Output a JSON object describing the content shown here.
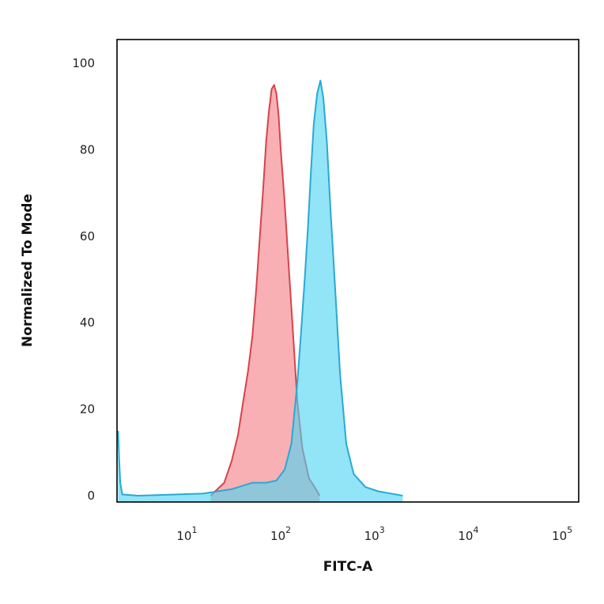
{
  "chart_data": {
    "type": "area",
    "title": "",
    "xlabel": "FITC-A",
    "ylabel": "Normalized To Mode",
    "x_scale": "log",
    "xlim": [
      1.8,
      150000
    ],
    "ylim": [
      0,
      100
    ],
    "y_ticks": [
      "0",
      "20",
      "40",
      "60",
      "80",
      "100"
    ],
    "x_ticks": [
      {
        "base": "10",
        "exp": "1",
        "value": 10
      },
      {
        "base": "10",
        "exp": "2",
        "value": 100
      },
      {
        "base": "10",
        "exp": "3",
        "value": 1000
      },
      {
        "base": "10",
        "exp": "4",
        "value": 10000
      },
      {
        "base": "10",
        "exp": "5",
        "value": 100000
      }
    ],
    "grid": false,
    "legend": "none",
    "series": [
      {
        "color": "#f47f86",
        "stroke": "#d9424b",
        "points": [
          [
            18,
            0
          ],
          [
            20,
            1
          ],
          [
            25,
            3
          ],
          [
            30,
            8
          ],
          [
            35,
            14
          ],
          [
            40,
            22
          ],
          [
            45,
            29
          ],
          [
            50,
            37
          ],
          [
            55,
            48
          ],
          [
            60,
            60
          ],
          [
            65,
            71
          ],
          [
            70,
            82
          ],
          [
            75,
            89
          ],
          [
            80,
            94
          ],
          [
            85,
            95
          ],
          [
            90,
            93
          ],
          [
            95,
            88
          ],
          [
            100,
            80
          ],
          [
            110,
            68
          ],
          [
            120,
            55
          ],
          [
            135,
            38
          ],
          [
            150,
            22
          ],
          [
            170,
            11
          ],
          [
            200,
            4
          ],
          [
            230,
            2
          ],
          [
            260,
            0
          ]
        ]
      },
      {
        "color": "#4fd4f2",
        "stroke": "#29a9d4",
        "points": [
          [
            1.85,
            15
          ],
          [
            1.9,
            8
          ],
          [
            1.95,
            3
          ],
          [
            2.05,
            0.3
          ],
          [
            3,
            0
          ],
          [
            15,
            0.5
          ],
          [
            30,
            1.5
          ],
          [
            50,
            3
          ],
          [
            70,
            3
          ],
          [
            90,
            3.5
          ],
          [
            110,
            6
          ],
          [
            130,
            12
          ],
          [
            150,
            26
          ],
          [
            165,
            38
          ],
          [
            180,
            50
          ],
          [
            195,
            62
          ],
          [
            210,
            75
          ],
          [
            225,
            86
          ],
          [
            245,
            93
          ],
          [
            265,
            96
          ],
          [
            285,
            92
          ],
          [
            310,
            82
          ],
          [
            340,
            66
          ],
          [
            380,
            48
          ],
          [
            430,
            28
          ],
          [
            500,
            12
          ],
          [
            600,
            5
          ],
          [
            800,
            2
          ],
          [
            1100,
            1
          ],
          [
            1500,
            0.5
          ],
          [
            2000,
            0
          ]
        ]
      }
    ]
  }
}
